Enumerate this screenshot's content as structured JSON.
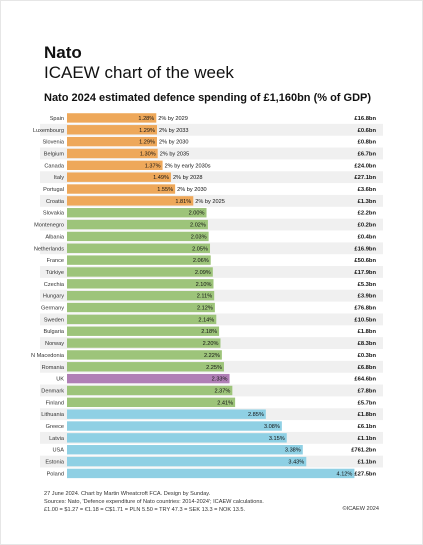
{
  "header": {
    "title": "Nato",
    "subtitle": "ICAEW chart of the week"
  },
  "chart_data": {
    "type": "bar",
    "orientation": "horizontal",
    "title": "Nato 2024 estimated defence spending of £1,160bn (% of GDP)",
    "categories": [
      "Spain",
      "Luxembourg",
      "Slovenia",
      "Belgium",
      "Canada",
      "Italy",
      "Portugal",
      "Croatia",
      "Slovakia",
      "Montenegro",
      "Albania",
      "Netherlands",
      "France",
      "Türkiye",
      "Czechia",
      "Hungary",
      "Germany",
      "Sweden",
      "Bulgaria",
      "Norway",
      "N Macedonia",
      "Romania",
      "UK",
      "Denmark",
      "Finland",
      "Lithuania",
      "Greece",
      "Latvia",
      "USA",
      "Estonia",
      "Poland"
    ],
    "values": [
      1.28,
      1.29,
      1.29,
      1.3,
      1.37,
      1.49,
      1.55,
      1.81,
      2.0,
      2.02,
      2.03,
      2.05,
      2.06,
      2.09,
      2.1,
      2.11,
      2.12,
      2.14,
      2.18,
      2.2,
      2.22,
      2.25,
      2.33,
      2.37,
      2.41,
      2.85,
      3.08,
      3.15,
      3.38,
      3.43,
      4.12
    ],
    "value_labels": [
      "1.28%",
      "1.29%",
      "1.29%",
      "1.30%",
      "1.37%",
      "1.49%",
      "1.55%",
      "1.81%",
      "2.00%",
      "2.02%",
      "2.03%",
      "2.05%",
      "2.06%",
      "2.09%",
      "2.10%",
      "2.11%",
      "2.12%",
      "2.14%",
      "2.18%",
      "2.20%",
      "2.22%",
      "2.25%",
      "2.33%",
      "2.37%",
      "2.41%",
      "2.85%",
      "3.08%",
      "3.15%",
      "3.38%",
      "3.43%",
      "4.12%"
    ],
    "annotations": [
      "2% by 2029",
      "2% by 2033",
      "2% by 2030",
      "2% by 2035",
      "2% by early 2030s",
      "2% by 2028",
      "2% by 2030",
      "2% by 2025",
      "",
      "",
      "",
      "",
      "",
      "",
      "",
      "",
      "",
      "",
      "",
      "",
      "",
      "",
      "",
      "",
      "",
      "",
      "",
      "",
      "",
      "",
      ""
    ],
    "spending": [
      "£16.8bn",
      "£0.6bn",
      "£0.8bn",
      "£6.7bn",
      "£24.0bn",
      "£27.1bn",
      "£3.6bn",
      "£1.3bn",
      "£2.2bn",
      "£0.2bn",
      "£0.4bn",
      "£16.9bn",
      "£50.6bn",
      "£17.9bn",
      "£5.3bn",
      "£3.9bn",
      "£76.8bn",
      "£10.5bn",
      "£1.8bn",
      "£8.3bn",
      "£0.3bn",
      "£6.8bn",
      "£64.6bn",
      "£7.8bn",
      "£5.7bn",
      "£1.8bn",
      "£6.1bn",
      "£1.1bn",
      "£761.2bn",
      "£1.1bn",
      "£27.5bn"
    ],
    "groups": [
      "below",
      "below",
      "below",
      "below",
      "below",
      "below",
      "below",
      "below",
      "mid",
      "mid",
      "mid",
      "mid",
      "mid",
      "mid",
      "mid",
      "mid",
      "mid",
      "mid",
      "mid",
      "mid",
      "mid",
      "mid",
      "uk",
      "mid",
      "mid",
      "high",
      "high",
      "high",
      "high",
      "high",
      "high"
    ],
    "colors": {
      "below": "#eea85a",
      "mid": "#9dc47a",
      "uk": "#b07fb6",
      "high": "#8fd0e4",
      "row_shade": "#f0f0f0"
    },
    "xlim": [
      0,
      4.2
    ]
  },
  "footer": {
    "line1": "27 June 2024. Chart by Martin Wheatcroft FCA. Design by Sunday.",
    "line2": "Sources: Nato, 'Defence expenditure of Nato countries: 2014-2024'; ICAEW calculations.",
    "line3": "£1.00 = $1.27 = €1.18 = C$1.71 = PLN 5.50 = TRY 47.3 = SEK 13.3 = NOK 13.5.",
    "copyright": "©ICAEW 2024"
  }
}
